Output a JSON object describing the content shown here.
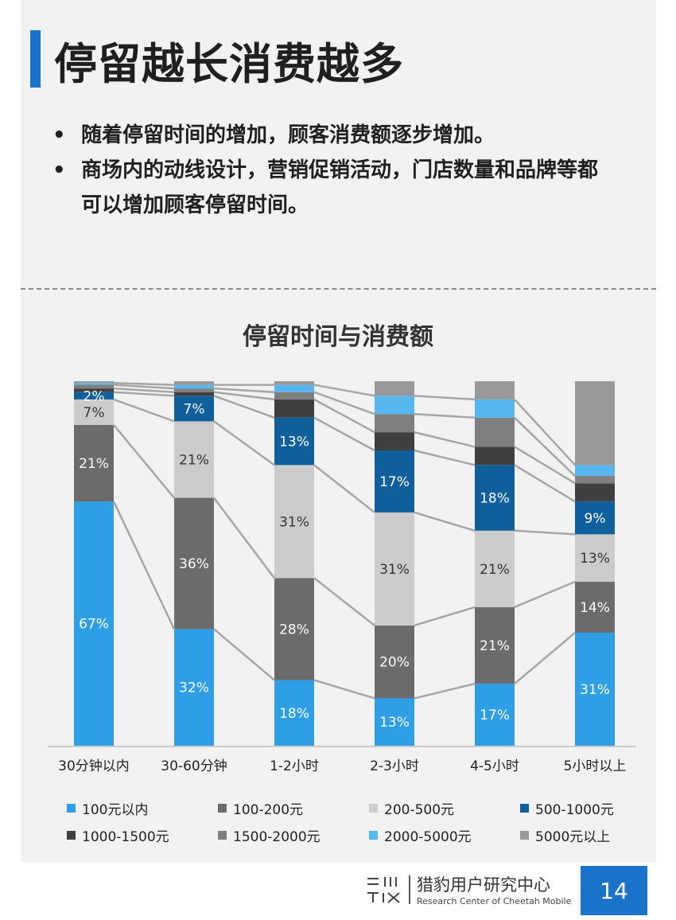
{
  "slide": {
    "title": "停留越长消费越多",
    "bullets": [
      "随着停留时间的增加，顾客消费额逐步增加。",
      "商场内的动线设计，营销促销活动，门店数量和品牌等都可以增加顾客停留时间。"
    ],
    "page_number": "14"
  },
  "footer": {
    "org_cn": "猎豹用户研究中心",
    "org_en": "Research Center of Cheetah Mobile"
  },
  "chart_data": {
    "type": "bar",
    "stacked": true,
    "normalized": true,
    "title": "停留时间与消费额",
    "categories": [
      "30分钟以内",
      "30-60分钟",
      "1-2小时",
      "2-3小时",
      "4-5小时",
      "5小时以上"
    ],
    "ylim": [
      0,
      100
    ],
    "grid": false,
    "legend_position": "bottom",
    "series": [
      {
        "name": "100元以内",
        "color": "#2e9fe6",
        "values": [
          67,
          32,
          18,
          13,
          17,
          31
        ],
        "labels": [
          "67%",
          "32%",
          "18%",
          "13%",
          "17%",
          "31%"
        ]
      },
      {
        "name": "100-200元",
        "color": "#6b6b6b",
        "values": [
          21,
          36,
          28,
          20,
          21,
          14
        ],
        "labels": [
          "21%",
          "36%",
          "28%",
          "20%",
          "21%",
          "14%"
        ]
      },
      {
        "name": "200-500元",
        "color": "#cccccc",
        "values": [
          7,
          21,
          31,
          31,
          21,
          13
        ],
        "labels": [
          "7%",
          "21%",
          "31%",
          "31%",
          "21%",
          "13%"
        ]
      },
      {
        "name": "500-1000元",
        "color": "#0f5f9c",
        "values": [
          2,
          7,
          13,
          17,
          18,
          9
        ],
        "labels": [
          "2%",
          "7%",
          "13%",
          "17%",
          "18%",
          "9%"
        ]
      },
      {
        "name": "1000-1500元",
        "color": "#3f3f3f",
        "values": [
          1,
          1,
          5,
          5,
          5,
          5
        ],
        "labels": [
          "",
          "",
          "",
          "",
          "",
          ""
        ]
      },
      {
        "name": "1500-2000元",
        "color": "#7f7f7f",
        "values": [
          1,
          1,
          2,
          5,
          8,
          2
        ],
        "labels": [
          "",
          "",
          "",
          "",
          "",
          ""
        ]
      },
      {
        "name": "2000-5000元",
        "color": "#57b6ee",
        "values": [
          0.5,
          1,
          2,
          5,
          5,
          3
        ],
        "labels": [
          "",
          "",
          "",
          "",
          "",
          ""
        ]
      },
      {
        "name": "5000元以上",
        "color": "#999999",
        "values": [
          0.5,
          1,
          1,
          4,
          5,
          23
        ],
        "labels": [
          "",
          "",
          "",
          "",
          "",
          ""
        ]
      }
    ]
  }
}
